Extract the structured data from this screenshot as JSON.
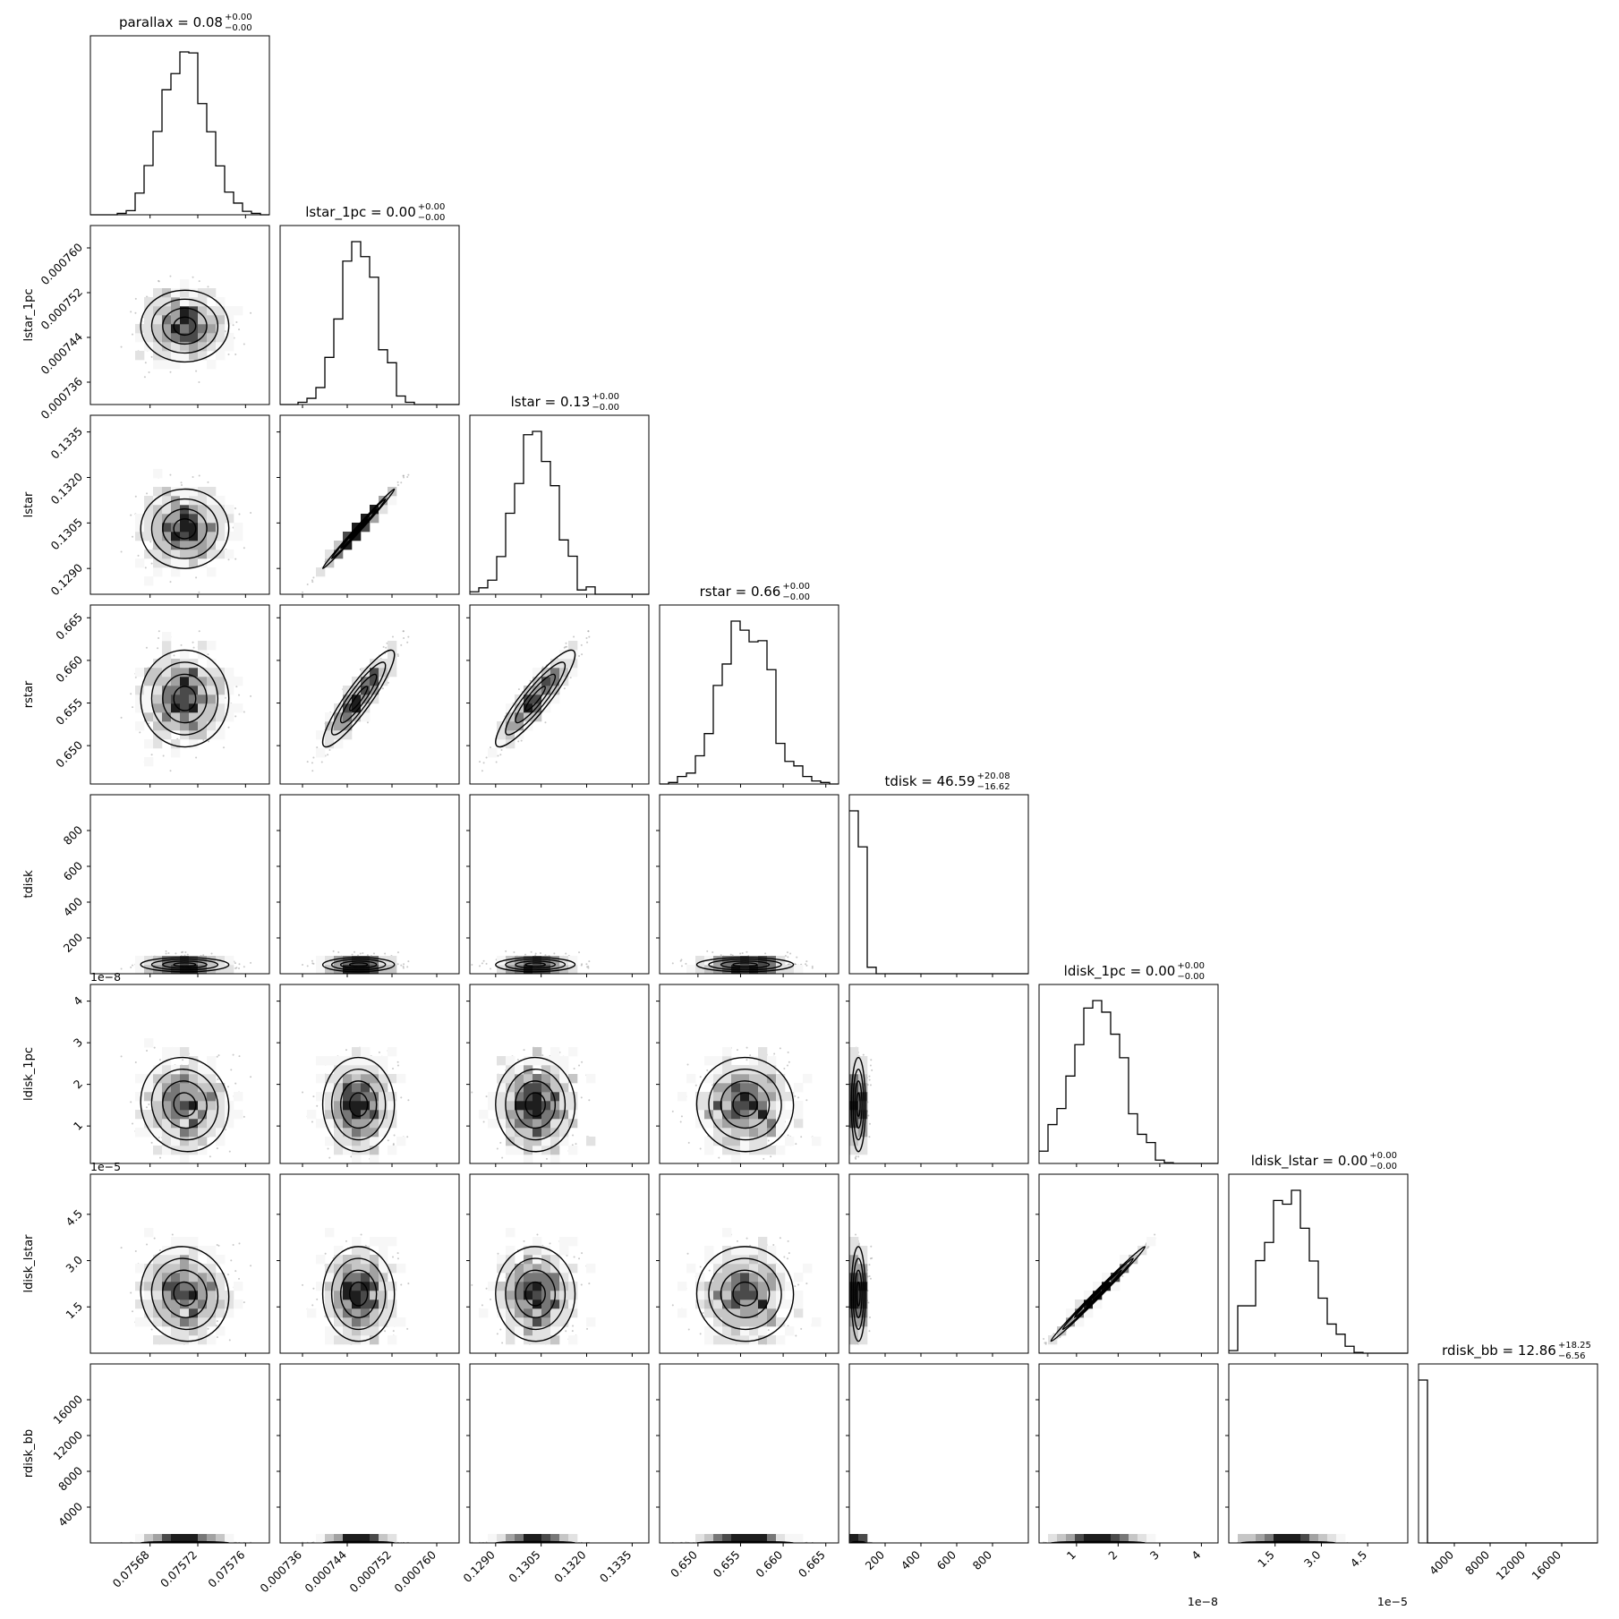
{
  "chart_data": {
    "type": "corner",
    "parameters": [
      "parallax",
      "lstar_1pc",
      "lstar",
      "rstar",
      "tdisk",
      "ldisk_1pc",
      "ldisk_lstar",
      "rdisk_bb"
    ],
    "titles": [
      {
        "param": "parallax",
        "text": "parallax = 0.08",
        "plus": "+0.00",
        "minus": "−0.00"
      },
      {
        "param": "lstar_1pc",
        "text": "lstar_1pc = 0.00",
        "plus": "+0.00",
        "minus": "−0.00"
      },
      {
        "param": "lstar",
        "text": "lstar = 0.13",
        "plus": "+0.00",
        "minus": "−0.00"
      },
      {
        "param": "rstar",
        "text": "rstar = 0.66",
        "plus": "+0.00",
        "minus": "−0.00"
      },
      {
        "param": "tdisk",
        "text": "tdisk = 46.59",
        "plus": "+20.08",
        "minus": "−16.62"
      },
      {
        "param": "ldisk_1pc",
        "text": "ldisk_1pc = 0.00",
        "plus": "+0.00",
        "minus": "−0.00"
      },
      {
        "param": "ldisk_lstar",
        "text": "ldisk_lstar = 0.00",
        "plus": "+0.00",
        "minus": "−0.00"
      },
      {
        "param": "rdisk_bb",
        "text": "rdisk_bb = 12.86",
        "plus": "+18.25",
        "minus": "−6.56"
      }
    ],
    "axes": [
      {
        "param": "parallax",
        "range": [
          0.07563,
          0.07578
        ],
        "ticks": [
          "0.07568",
          "0.07572",
          "0.07576"
        ],
        "tick_values": [
          0.07568,
          0.07572,
          0.07576
        ],
        "offset_text": ""
      },
      {
        "param": "lstar_1pc",
        "range": [
          0.000732,
          0.000764
        ],
        "ticks": [
          "0.000736",
          "0.000744",
          "0.000752",
          "0.000760"
        ],
        "tick_values": [
          0.000736,
          0.000744,
          0.000752,
          0.00076
        ],
        "offset_text": ""
      },
      {
        "param": "lstar",
        "range": [
          0.12815,
          0.13405
        ],
        "ticks": [
          "0.1290",
          "0.1305",
          "0.1320",
          "0.1335"
        ],
        "tick_values": [
          0.129,
          0.1305,
          0.132,
          0.1335
        ],
        "offset_text": ""
      },
      {
        "param": "rstar",
        "range": [
          0.6455,
          0.6665
        ],
        "ticks": [
          "0.650",
          "0.655",
          "0.660",
          "0.665"
        ],
        "tick_values": [
          0.65,
          0.655,
          0.66,
          0.665
        ],
        "offset_text": ""
      },
      {
        "param": "tdisk",
        "range": [
          0,
          1000
        ],
        "ticks": [
          "200",
          "400",
          "600",
          "800"
        ],
        "tick_values": [
          200,
          400,
          600,
          800
        ],
        "offset_text": ""
      },
      {
        "param": "ldisk_1pc",
        "range": [
          0.1,
          4.4
        ],
        "ticks": [
          "1",
          "2",
          "3",
          "4"
        ],
        "tick_values": [
          1,
          2,
          3,
          4
        ],
        "offset_text": "1e−8"
      },
      {
        "param": "ldisk_lstar",
        "range": [
          0.0,
          5.8
        ],
        "ticks": [
          "1.5",
          "3.0",
          "4.5"
        ],
        "tick_values": [
          1.5,
          3.0,
          4.5
        ],
        "offset_text": "1e−5"
      },
      {
        "param": "rdisk_bb",
        "range": [
          0,
          20000
        ],
        "ticks": [
          "4000",
          "8000",
          "12000",
          "16000"
        ],
        "tick_values": [
          4000,
          8000,
          12000,
          16000
        ],
        "offset_text": ""
      }
    ],
    "posterior_centers": [
      0.07571,
      0.000746,
      0.1303,
      0.6555,
      46.59,
      1.5,
      1.9,
      12.86
    ],
    "posterior_sigmas": [
      1.8e-05,
      3.2e-06,
      0.00065,
      0.0028,
      18,
      0.55,
      0.75,
      12
    ],
    "ticks_removed": "interior",
    "grid": false,
    "legend": "none",
    "colors": {
      "contour": "#000000",
      "hist": "#000000",
      "density": "#000000",
      "points": "#9a9a9a"
    }
  }
}
